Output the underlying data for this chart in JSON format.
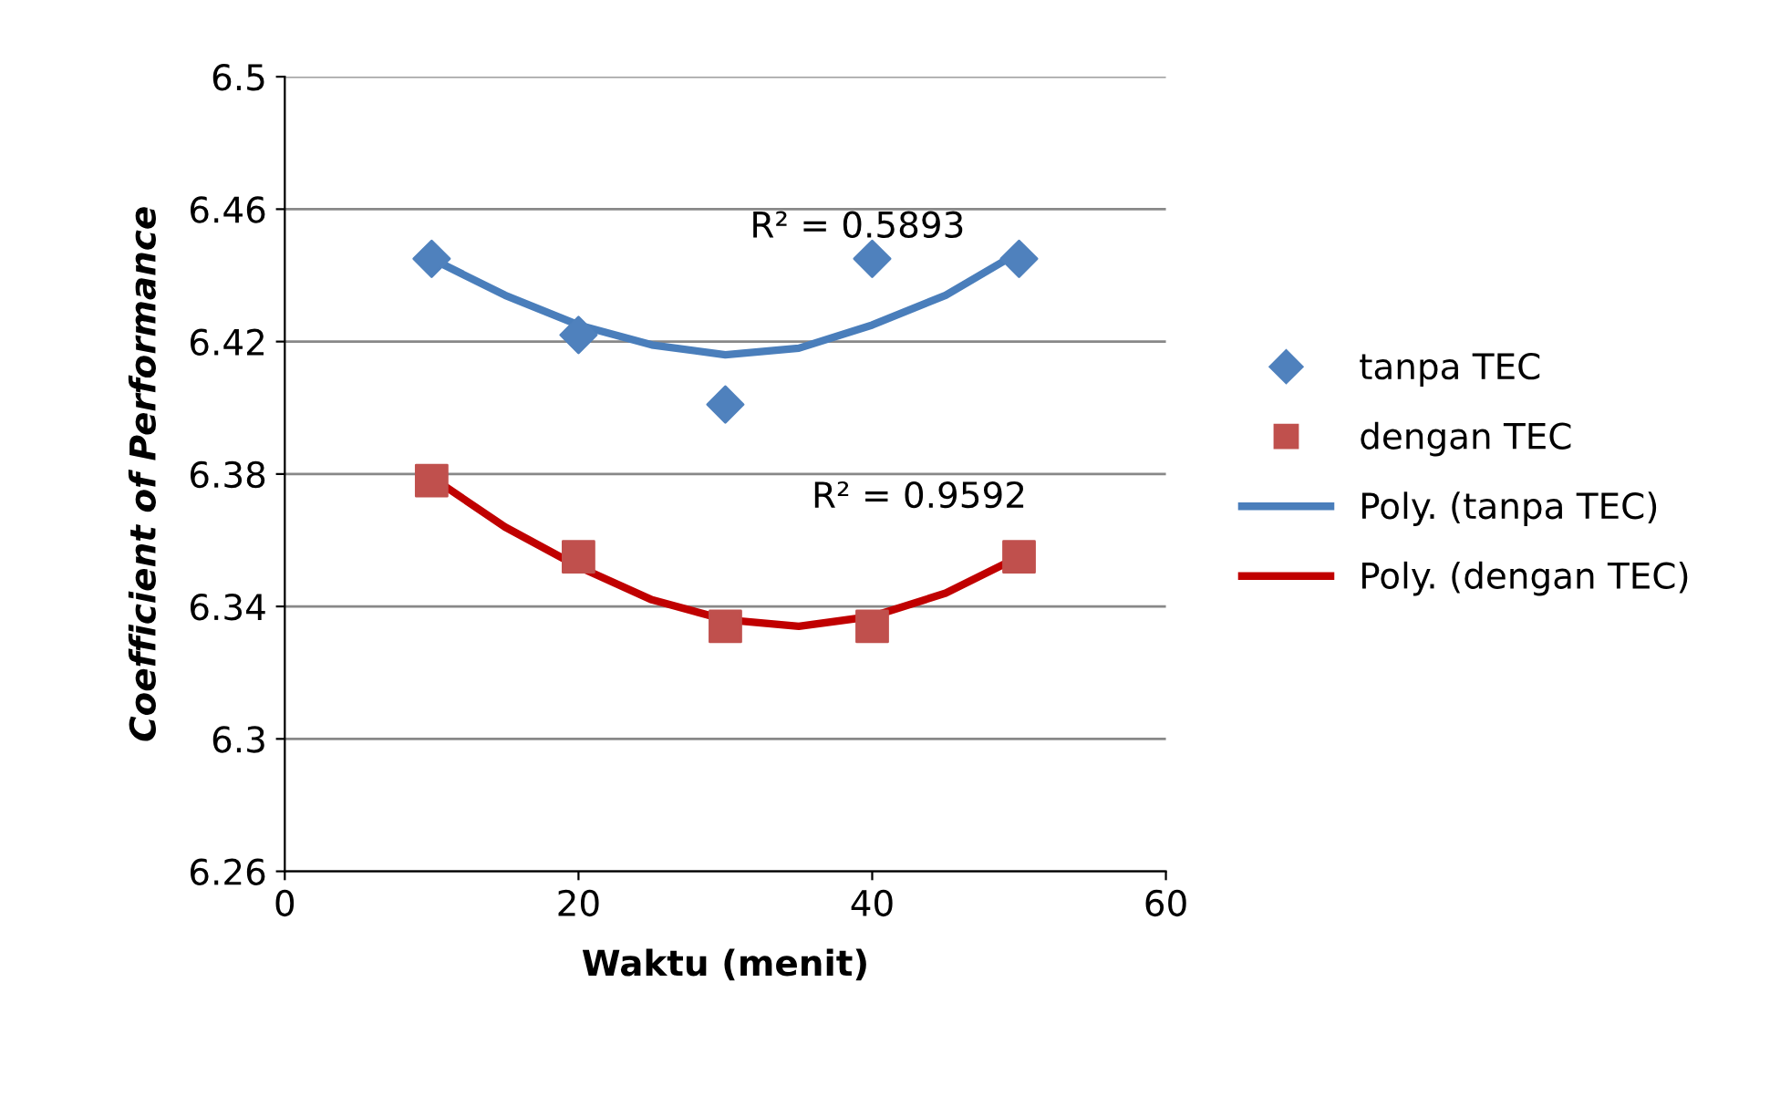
{
  "chart_data": {
    "type": "scatter",
    "xlabel": "Waktu (menit)",
    "ylabel": "Coefficient of Performance",
    "xlim": [
      0,
      60
    ],
    "xticks": [
      0,
      20,
      40,
      60
    ],
    "ylim": [
      6.26,
      6.5
    ],
    "yticks": [
      6.26,
      6.3,
      6.34,
      6.38,
      6.42,
      6.46,
      6.5
    ],
    "grid": "y",
    "legend": "right",
    "series": [
      {
        "name": "tanpa TEC",
        "marker": "diamond",
        "color": "#4f81bd",
        "x": [
          10,
          20,
          30,
          40,
          50
        ],
        "values": [
          6.445,
          6.422,
          6.401,
          6.445,
          6.445
        ]
      },
      {
        "name": "dengan TEC",
        "marker": "square",
        "color": "#c0504d",
        "x": [
          10,
          20,
          30,
          40,
          50
        ],
        "values": [
          6.378,
          6.355,
          6.334,
          6.334,
          6.355
        ]
      },
      {
        "name": "Poly. (tanpa TEC)",
        "type": "line",
        "color": "#4a7ebb",
        "x": [
          10,
          15,
          20,
          25,
          30,
          35,
          40,
          45,
          50
        ],
        "values": [
          6.445,
          6.434,
          6.425,
          6.419,
          6.416,
          6.418,
          6.425,
          6.434,
          6.447
        ]
      },
      {
        "name": "Poly. (dengan TEC)",
        "type": "line",
        "color": "#c00000",
        "x": [
          10,
          15,
          20,
          25,
          30,
          35,
          40,
          45,
          50
        ],
        "values": [
          6.379,
          6.364,
          6.352,
          6.342,
          6.336,
          6.334,
          6.337,
          6.344,
          6.355
        ]
      }
    ],
    "annotations": [
      "R² = 0.5893",
      "R² = 0.9592"
    ]
  }
}
